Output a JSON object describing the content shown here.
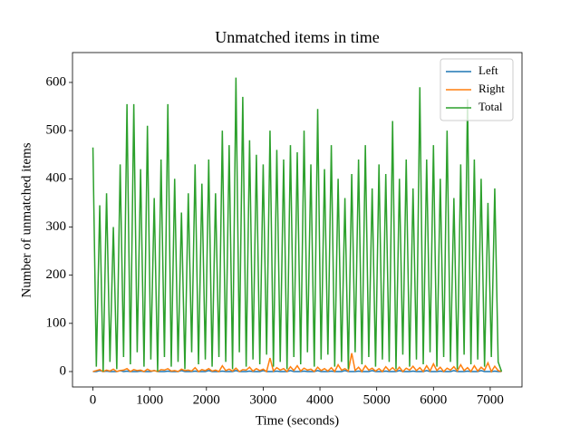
{
  "chart_data": {
    "type": "line",
    "title": "Unmatched items in time",
    "x_label": "Time (seconds)",
    "y_label": "Number of unmatched items",
    "x": [
      0,
      60,
      120,
      180,
      240,
      300,
      360,
      420,
      480,
      540,
      600,
      660,
      720,
      780,
      840,
      900,
      960,
      1020,
      1080,
      1140,
      1200,
      1260,
      1320,
      1380,
      1440,
      1500,
      1560,
      1620,
      1680,
      1740,
      1800,
      1860,
      1920,
      1980,
      2040,
      2100,
      2160,
      2220,
      2280,
      2340,
      2400,
      2460,
      2520,
      2580,
      2640,
      2700,
      2760,
      2820,
      2880,
      2940,
      3000,
      3060,
      3120,
      3180,
      3240,
      3300,
      3360,
      3420,
      3480,
      3540,
      3600,
      3660,
      3720,
      3780,
      3840,
      3900,
      3960,
      4020,
      4080,
      4140,
      4200,
      4260,
      4320,
      4380,
      4440,
      4500,
      4560,
      4620,
      4680,
      4740,
      4800,
      4860,
      4920,
      4980,
      5040,
      5100,
      5160,
      5220,
      5280,
      5340,
      5400,
      5460,
      5520,
      5580,
      5640,
      5700,
      5760,
      5820,
      5880,
      5940,
      6000,
      6060,
      6120,
      6180,
      6240,
      6300,
      6360,
      6420,
      6480,
      6540,
      6600,
      6660,
      6720,
      6780,
      6840,
      6900,
      6960,
      7020,
      7080,
      7140,
      7200
    ],
    "series": [
      {
        "name": "Left",
        "color": "#1f77b4",
        "values": [
          0,
          0,
          2,
          0,
          1,
          0,
          0,
          0,
          2,
          0,
          1,
          0,
          0,
          0,
          1,
          0,
          0,
          0,
          2,
          0,
          0,
          0,
          1,
          0,
          0,
          0,
          2,
          0,
          0,
          0,
          1,
          0,
          0,
          0,
          2,
          0,
          0,
          0,
          1,
          0,
          0,
          0,
          2,
          0,
          0,
          0,
          1,
          0,
          0,
          0,
          2,
          0,
          0,
          0,
          1,
          0,
          0,
          0,
          2,
          0,
          0,
          0,
          1,
          0,
          0,
          0,
          2,
          0,
          0,
          0,
          1,
          0,
          0,
          0,
          2,
          0,
          0,
          0,
          1,
          0,
          0,
          0,
          2,
          0,
          0,
          0,
          1,
          0,
          0,
          0,
          2,
          0,
          0,
          0,
          1,
          0,
          0,
          0,
          2,
          0,
          0,
          0,
          1,
          0,
          0,
          0,
          2,
          0,
          0,
          0,
          1,
          0,
          0,
          0,
          2,
          0,
          0,
          0,
          1,
          0,
          0
        ]
      },
      {
        "name": "Right",
        "color": "#ff7f0e",
        "values": [
          0,
          2,
          4,
          0,
          3,
          1,
          5,
          0,
          2,
          3,
          6,
          0,
          4,
          2,
          3,
          0,
          5,
          1,
          2,
          0,
          4,
          3,
          6,
          1,
          2,
          0,
          5,
          2,
          3,
          1,
          8,
          0,
          4,
          2,
          6,
          1,
          3,
          0,
          12,
          2,
          5,
          1,
          7,
          0,
          4,
          3,
          9,
          1,
          6,
          2,
          5,
          0,
          28,
          1,
          8,
          3,
          6,
          0,
          10,
          2,
          12,
          1,
          7,
          3,
          5,
          0,
          9,
          2,
          6,
          1,
          8,
          0,
          14,
          3,
          6,
          1,
          38,
          2,
          9,
          0,
          12,
          3,
          7,
          1,
          6,
          0,
          10,
          2,
          8,
          1,
          9,
          0,
          7,
          3,
          11,
          2,
          8,
          0,
          12,
          1,
          16,
          2,
          9,
          0,
          7,
          3,
          10,
          1,
          14,
          2,
          8,
          0,
          12,
          1,
          9,
          3,
          18,
          0,
          11,
          2,
          0
        ]
      },
      {
        "name": "Total",
        "color": "#2ca02c",
        "values": [
          465,
          10,
          345,
          0,
          370,
          20,
          300,
          5,
          430,
          30,
          555,
          15,
          555,
          40,
          420,
          10,
          510,
          25,
          360,
          0,
          440,
          30,
          555,
          10,
          400,
          20,
          330,
          5,
          370,
          40,
          430,
          15,
          390,
          25,
          440,
          10,
          370,
          30,
          500,
          20,
          470,
          5,
          610,
          40,
          570,
          10,
          480,
          25,
          450,
          15,
          430,
          35,
          500,
          10,
          460,
          20,
          440,
          5,
          470,
          30,
          455,
          15,
          500,
          40,
          430,
          10,
          545,
          25,
          420,
          35,
          470,
          10,
          400,
          20,
          360,
          5,
          410,
          40,
          440,
          15,
          470,
          30,
          380,
          10,
          430,
          25,
          410,
          20,
          520,
          5,
          400,
          35,
          440,
          10,
          380,
          25,
          590,
          15,
          440,
          40,
          470,
          10,
          400,
          30,
          500,
          20,
          360,
          5,
          430,
          35,
          565,
          15,
          440,
          25,
          400,
          10,
          350,
          30,
          380,
          20,
          0
        ]
      }
    ],
    "xlim": [
      -360,
      7560
    ],
    "ylim": [
      -32,
      662
    ],
    "xticks": [
      0,
      1000,
      2000,
      3000,
      4000,
      5000,
      6000,
      7000
    ],
    "yticks": [
      0,
      100,
      200,
      300,
      400,
      500,
      600
    ],
    "legend": "upper right"
  }
}
